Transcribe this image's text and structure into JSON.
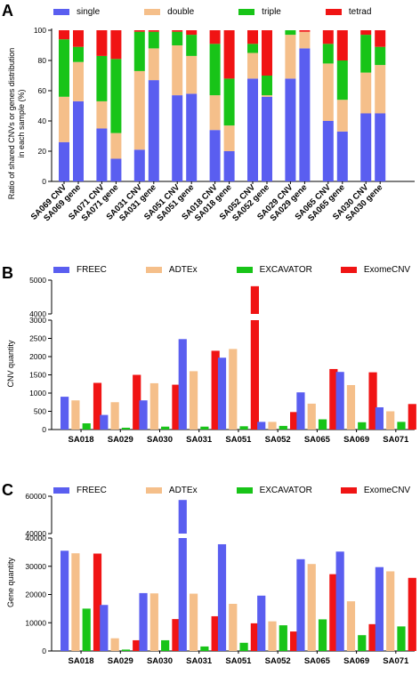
{
  "colors": {
    "blue": "#5a5ef0",
    "peach": "#f5bf8a",
    "green": "#18c418",
    "red": "#f01414"
  },
  "chart_data": [
    {
      "panel": "A",
      "type": "bar",
      "stacked": true,
      "legend": [
        "single",
        "double",
        "triple",
        "tetrad"
      ],
      "ylabel": "Ratio of shared CNVs or genes distribution in each sample (%)",
      "ylim": [
        0,
        100
      ],
      "yticks": [
        "0",
        "20",
        "40",
        "60",
        "80",
        "100"
      ],
      "categories": [
        "SA069 CNV",
        "SA069 gene",
        "SA071 CNV",
        "SA071 gene",
        "SA031 CNV",
        "SA031 gene",
        "SA051 CNV",
        "SA051 gene",
        "SA018 CNV",
        "SA018 gene",
        "SA052 CNV",
        "SA052 gene",
        "SA029 CNV",
        "SA029 gene",
        "SA065 CNV",
        "SA065 gene",
        "SA030 CNV",
        "SA030 gene"
      ],
      "series": [
        {
          "name": "single",
          "values": [
            26,
            53,
            35,
            15,
            21,
            67,
            57,
            58,
            34,
            20,
            68,
            56,
            68,
            88,
            40,
            33,
            45,
            45
          ]
        },
        {
          "name": "double",
          "values": [
            30,
            26,
            18,
            17,
            52,
            21,
            33,
            25,
            23,
            17,
            17,
            1,
            29,
            11,
            38,
            21,
            27,
            32
          ]
        },
        {
          "name": "triple",
          "values": [
            38,
            10,
            30,
            49,
            26,
            11,
            9,
            14,
            34,
            31,
            6,
            13,
            3,
            0,
            13,
            26,
            25,
            12
          ]
        },
        {
          "name": "tetrad",
          "values": [
            6,
            11,
            17,
            19,
            1,
            1,
            1,
            3,
            9,
            32,
            9,
            30,
            0,
            1,
            9,
            20,
            3,
            11
          ]
        }
      ]
    },
    {
      "panel": "B",
      "type": "bar",
      "legend": [
        "FREEC",
        "ADTEx",
        "EXCAVATOR",
        "ExomeCNV"
      ],
      "ylabel": "CNV quantity",
      "yticks": [
        "0",
        "500",
        "1000",
        "1500",
        "2000",
        "2500",
        "3000",
        "4000",
        "5000"
      ],
      "categories": [
        "SA018",
        "SA029",
        "SA030",
        "SA031",
        "SA051",
        "SA052",
        "SA065",
        "SA069",
        "SA071"
      ],
      "series": [
        {
          "name": "FREEC",
          "values": [
            900,
            400,
            800,
            2480,
            1970,
            210,
            1020,
            1580,
            610
          ]
        },
        {
          "name": "ADTEx",
          "values": [
            800,
            750,
            1270,
            1600,
            2210,
            210,
            710,
            1220,
            500
          ]
        },
        {
          "name": "EXCAVATOR",
          "values": [
            170,
            50,
            80,
            80,
            90,
            100,
            280,
            200,
            210
          ]
        },
        {
          "name": "ExomeCNV",
          "values": [
            1280,
            1500,
            1230,
            2160,
            4820,
            480,
            1660,
            1570,
            700
          ]
        }
      ]
    },
    {
      "panel": "C",
      "type": "bar",
      "legend": [
        "FREEC",
        "ADTEx",
        "EXCAVATOR",
        "ExomeCNV"
      ],
      "ylabel": "Gene quantity",
      "yticks": [
        "0",
        "10000",
        "20000",
        "30000",
        "40000",
        "40000",
        "60000"
      ],
      "categories": [
        "SA018",
        "SA029",
        "SA030",
        "SA031",
        "SA051",
        "SA052",
        "SA065",
        "SA069",
        "SA071"
      ],
      "series": [
        {
          "name": "FREEC",
          "values": [
            35500,
            16300,
            20500,
            58000,
            37800,
            19600,
            32500,
            35200,
            29700
          ]
        },
        {
          "name": "ADTEx",
          "values": [
            34600,
            4500,
            20400,
            20300,
            16700,
            10500,
            30800,
            17600,
            28200
          ]
        },
        {
          "name": "EXCAVATOR",
          "values": [
            15000,
            500,
            3800,
            1600,
            2900,
            9100,
            11200,
            5600,
            8700
          ]
        },
        {
          "name": "ExomeCNV",
          "values": [
            34500,
            3800,
            11300,
            12300,
            9800,
            6900,
            27200,
            9500,
            25900
          ]
        }
      ]
    }
  ]
}
